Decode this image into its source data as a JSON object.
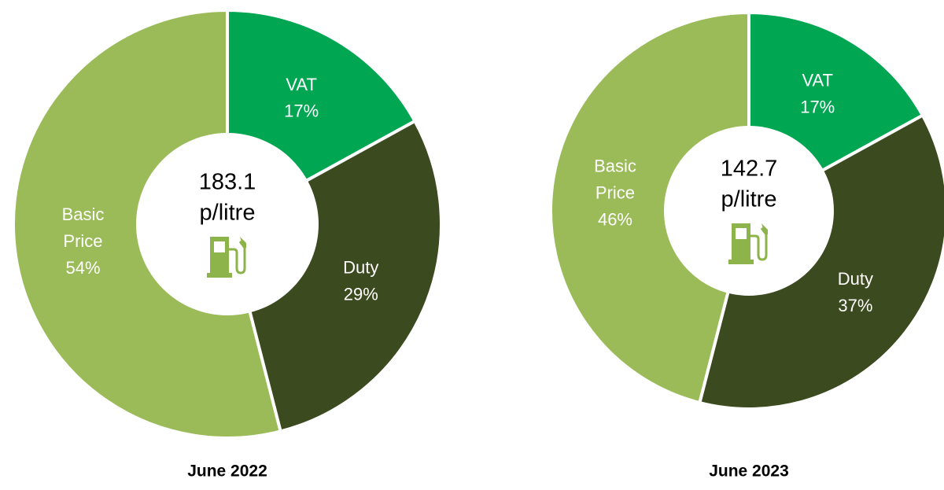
{
  "chart_data": [
    {
      "type": "pie",
      "title": "June 2022",
      "center_text": [
        "183.1",
        "p/litre"
      ],
      "categories": [
        "VAT",
        "Duty",
        "Basic Price"
      ],
      "values": [
        17,
        29,
        54
      ],
      "value_labels": [
        "17%",
        "29%",
        "54%"
      ],
      "colors": [
        "#00a651",
        "#3c4a1f",
        "#9bbb59"
      ]
    },
    {
      "type": "pie",
      "title": "June 2023",
      "center_text": [
        "142.7",
        "p/litre"
      ],
      "categories": [
        "VAT",
        "Duty",
        "Basic Price"
      ],
      "values": [
        17,
        37,
        46
      ],
      "value_labels": [
        "17%",
        "37%",
        "46%"
      ],
      "colors": [
        "#00a651",
        "#3c4a1f",
        "#9bbb59"
      ]
    }
  ]
}
